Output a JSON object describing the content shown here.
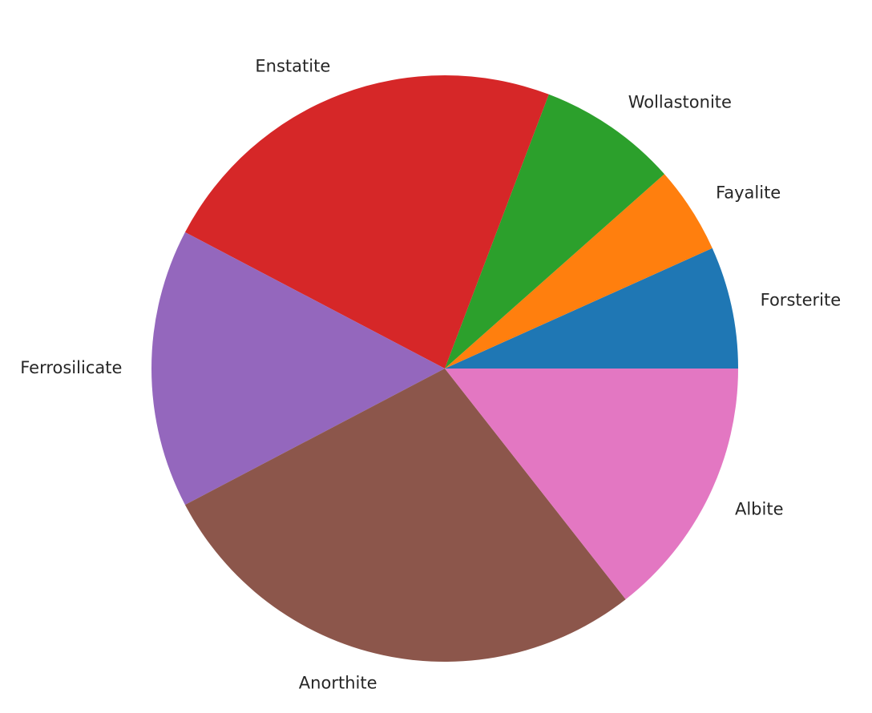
{
  "chart_data": {
    "type": "pie",
    "start_angle_deg": 0,
    "direction": "counterclockwise",
    "legend": "none",
    "slices": [
      {
        "label": "Forsterite",
        "value": 7,
        "color": "#1f77b4"
      },
      {
        "label": "Fayalite",
        "value": 5,
        "color": "#ff7f0e"
      },
      {
        "label": "Wollastonite",
        "value": 8,
        "color": "#2ca02c"
      },
      {
        "label": "Enstatite",
        "value": 24,
        "color": "#d62728"
      },
      {
        "label": "Ferrosilicate",
        "value": 16,
        "color": "#9467bd"
      },
      {
        "label": "Anorthite",
        "value": 29,
        "color": "#8c564b"
      },
      {
        "label": "Albite",
        "value": 15,
        "color": "#e377c2"
      }
    ]
  }
}
